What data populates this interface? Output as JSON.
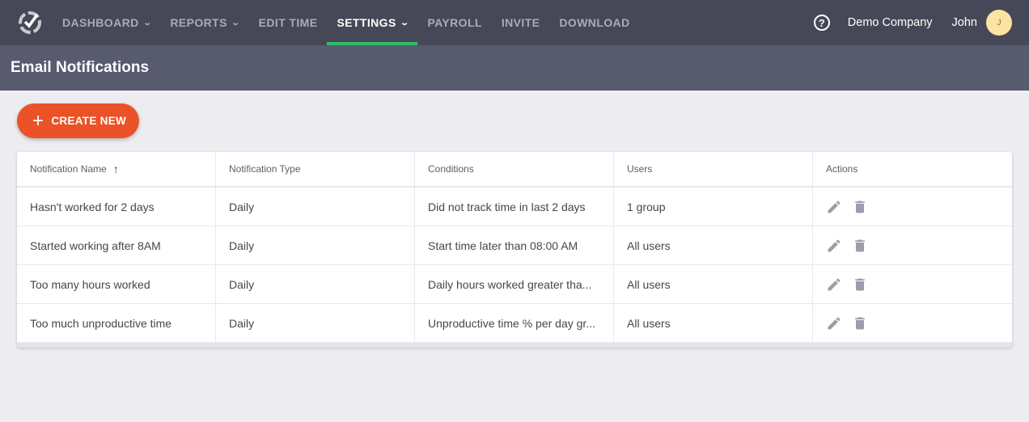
{
  "nav": {
    "items": [
      {
        "label": "DASHBOARD",
        "dropdown": true
      },
      {
        "label": "REPORTS",
        "dropdown": true
      },
      {
        "label": "EDIT TIME",
        "dropdown": false
      },
      {
        "label": "SETTINGS",
        "dropdown": true,
        "active": true
      },
      {
        "label": "PAYROLL",
        "dropdown": false
      },
      {
        "label": "INVITE",
        "dropdown": false
      },
      {
        "label": "DOWNLOAD",
        "dropdown": false
      }
    ],
    "company": "Demo Company",
    "user": "John",
    "avatar_initial": "J",
    "help_icon": "?",
    "chevron": "v"
  },
  "page": {
    "title": "Email Notifications",
    "create_label": "CREATE NEW",
    "create_icon": "+"
  },
  "table": {
    "headers": [
      "Notification Name",
      "Notification Type",
      "Conditions",
      "Users",
      "Actions"
    ],
    "sort_icon": "↑",
    "rows": [
      [
        "Hasn't worked for 2 days",
        "Daily",
        "Did not track time in last 2 days",
        "1 group"
      ],
      [
        "Started working after 8AM",
        "Daily",
        "Start time later than 08:00 AM",
        "All users"
      ],
      [
        "Too many hours worked",
        "Daily",
        "Daily hours worked greater tha...",
        "All users"
      ],
      [
        "Too much unproductive time",
        "Daily",
        "Unproductive time % per day gr...",
        "All users"
      ]
    ]
  },
  "colors": {
    "topbar": "#474857",
    "subheader": "#585a6e",
    "accent": "#ec5227",
    "active_underline": "#2ac06a",
    "icon": "#9c9dab"
  }
}
